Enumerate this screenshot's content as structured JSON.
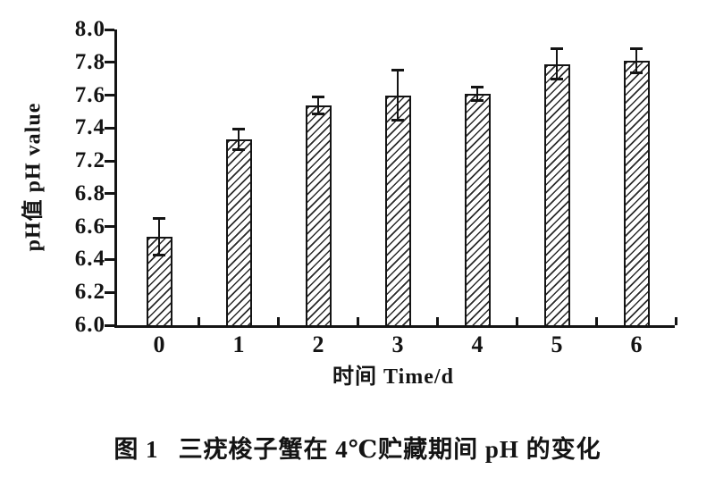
{
  "figure_caption": {
    "label": "图 1",
    "text": "三疣梭子蟹在 4℃贮藏期间 pH 的变化"
  },
  "chart_data": {
    "type": "bar",
    "title": "图 1 三疣梭子蟹在 4℃贮藏期间 pH 的变化",
    "xlabel": "时间 Time/d",
    "ylabel": "pH值 pH value",
    "categories": [
      "0",
      "1",
      "2",
      "3",
      "4",
      "5",
      "6"
    ],
    "values": [
      6.54,
      7.33,
      7.54,
      7.6,
      7.61,
      7.79,
      7.81
    ],
    "errors": [
      0.12,
      0.07,
      0.06,
      0.16,
      0.05,
      0.1,
      0.08
    ],
    "y_tick_labels": [
      "8.0",
      "7.8",
      "7.6",
      "7.4",
      "7.2",
      "6.8",
      "6.6",
      "6.4",
      "6.2",
      "6.0"
    ],
    "ylim": [
      6.0,
      8.0
    ],
    "grid": false,
    "legend": false,
    "bar_fill": "diagonal-hatch",
    "error_bars": true,
    "ink_color": "#141414",
    "background_color": "#ffffff"
  }
}
